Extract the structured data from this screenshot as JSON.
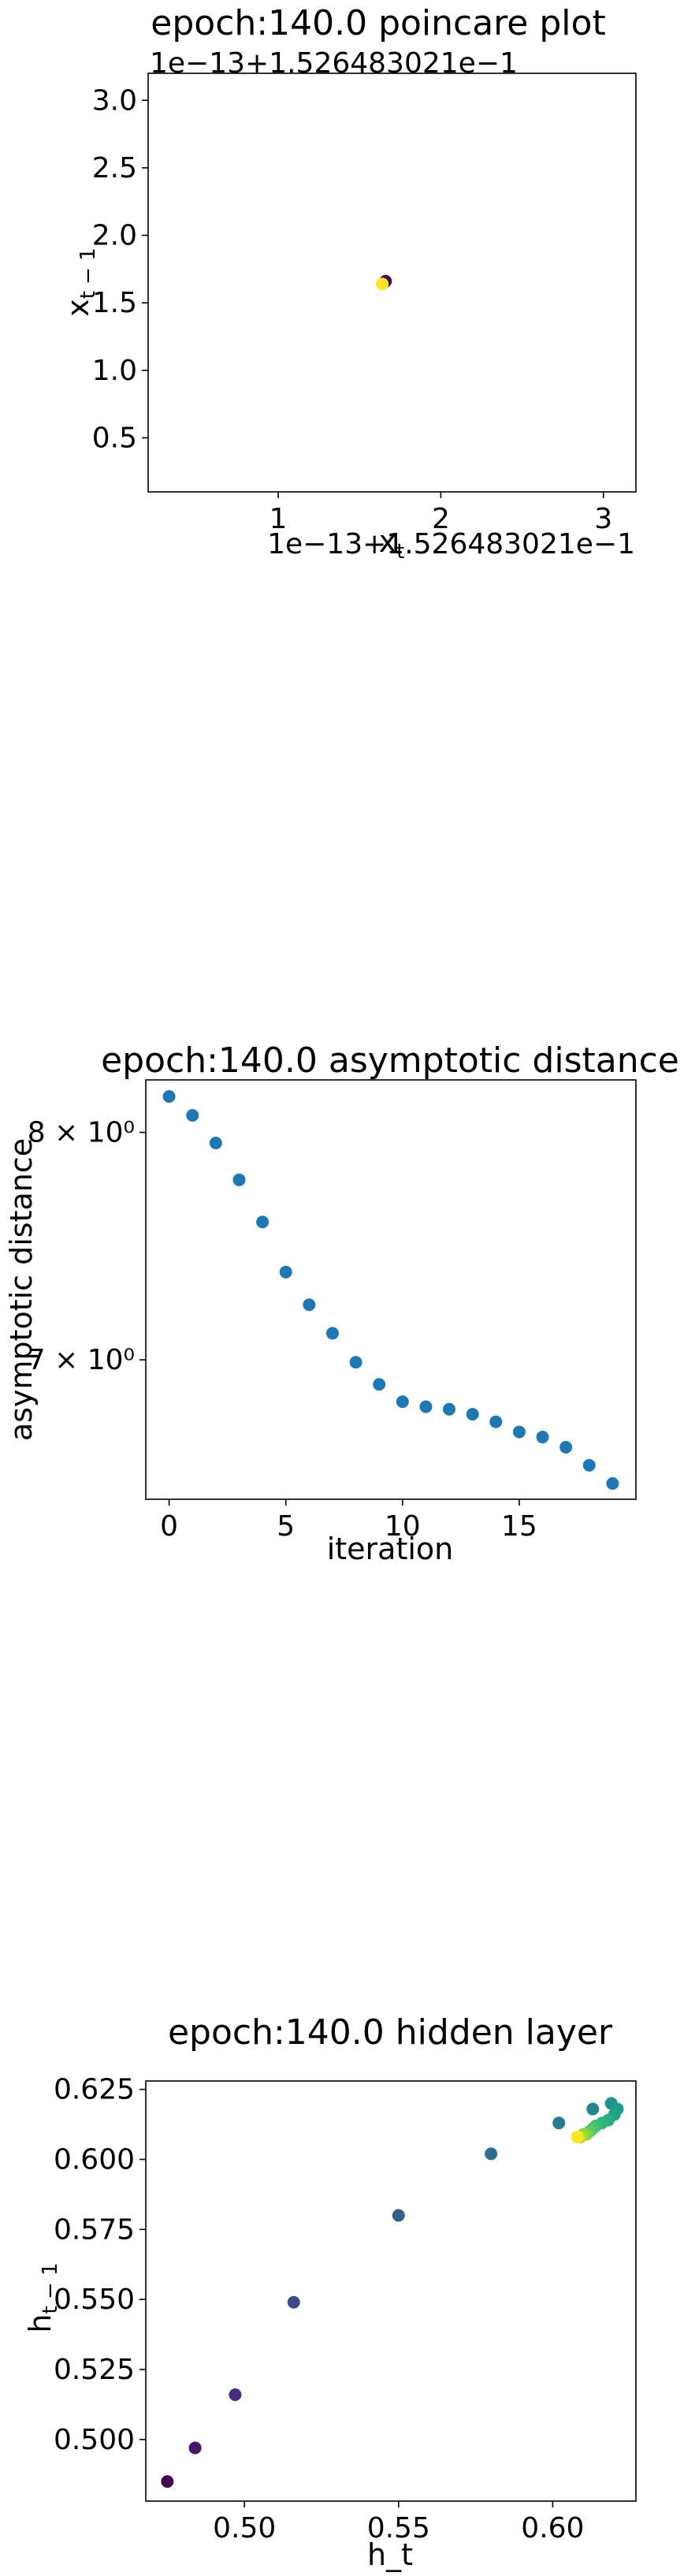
{
  "chart_data": [
    {
      "type": "scatter",
      "title": "epoch:140.0 poincare plot",
      "xlabel": "x_t",
      "ylabel": "x_{t-1}",
      "x_offset_label": "1e−13+1.526483021e−1",
      "y_offset_label": "1e−13+1.526483021e−1",
      "xlim": [
        0.2,
        3.2
      ],
      "ylim": [
        0.1,
        3.2
      ],
      "xticks": [
        1,
        2,
        3
      ],
      "yticks": [
        0.5,
        1.0,
        1.5,
        2.0,
        2.5,
        3.0
      ],
      "xtick_labels": [
        "1",
        "2",
        "3"
      ],
      "ytick_labels": [
        "0.5",
        "1.0",
        "1.5",
        "2.0",
        "2.5",
        "3.0"
      ],
      "colormap": "viridis",
      "points": [
        {
          "x": 1.66,
          "y": 1.66,
          "color": "#440154"
        },
        {
          "x": 1.64,
          "y": 1.64,
          "color": "#fde725"
        }
      ]
    },
    {
      "type": "scatter",
      "title": "epoch:140.0 asymptotic distance",
      "xlabel": "iteration",
      "ylabel": "asymptotic distance",
      "yscale": "log",
      "xlim": [
        -1,
        20
      ],
      "ylim": [
        6.45,
        8.25
      ],
      "xticks": [
        0,
        5,
        10,
        15
      ],
      "xtick_labels": [
        "0",
        "5",
        "10",
        "15"
      ],
      "yticks": [
        8,
        7
      ],
      "ytick_labels": [
        "8 × 10⁰",
        "7 × 10⁰"
      ],
      "color": "#1f77b4",
      "x": [
        0,
        1,
        2,
        3,
        4,
        5,
        6,
        7,
        8,
        9,
        10,
        11,
        12,
        13,
        14,
        15,
        16,
        17,
        18,
        19
      ],
      "y": [
        8.17,
        8.08,
        7.95,
        7.78,
        7.59,
        7.37,
        7.23,
        7.11,
        6.99,
        6.9,
        6.83,
        6.81,
        6.8,
        6.78,
        6.75,
        6.71,
        6.69,
        6.65,
        6.58,
        6.51
      ]
    },
    {
      "type": "scatter",
      "title": "epoch:140.0 hidden layer",
      "xlabel": "h_t",
      "ylabel": "h_{t-1}",
      "xlim": [
        0.468,
        0.627
      ],
      "ylim": [
        0.478,
        0.628
      ],
      "xticks": [
        0.5,
        0.55,
        0.6
      ],
      "xtick_labels": [
        "0.50",
        "0.55",
        "0.60"
      ],
      "yticks": [
        0.5,
        0.525,
        0.55,
        0.575,
        0.6,
        0.625
      ],
      "ytick_labels": [
        "0.500",
        "0.525",
        "0.550",
        "0.575",
        "0.600",
        "0.625"
      ],
      "colormap": "viridis",
      "points": [
        {
          "x": 0.475,
          "y": 0.485,
          "color": "#440154"
        },
        {
          "x": 0.484,
          "y": 0.497,
          "color": "#481467"
        },
        {
          "x": 0.497,
          "y": 0.516,
          "color": "#472d7b"
        },
        {
          "x": 0.516,
          "y": 0.549,
          "color": "#3e4989"
        },
        {
          "x": 0.55,
          "y": 0.58,
          "color": "#35608d"
        },
        {
          "x": 0.58,
          "y": 0.602,
          "color": "#2e6f8e"
        },
        {
          "x": 0.602,
          "y": 0.613,
          "color": "#297b8e"
        },
        {
          "x": 0.613,
          "y": 0.618,
          "color": "#24868e"
        },
        {
          "x": 0.619,
          "y": 0.62,
          "color": "#21918c"
        },
        {
          "x": 0.621,
          "y": 0.618,
          "color": "#1f9e89"
        },
        {
          "x": 0.62,
          "y": 0.616,
          "color": "#20a486"
        },
        {
          "x": 0.618,
          "y": 0.614,
          "color": "#26ad81"
        },
        {
          "x": 0.616,
          "y": 0.613,
          "color": "#31b57b"
        },
        {
          "x": 0.614,
          "y": 0.612,
          "color": "#3dbc74"
        },
        {
          "x": 0.613,
          "y": 0.611,
          "color": "#4ac16d"
        },
        {
          "x": 0.612,
          "y": 0.61,
          "color": "#5ec962"
        },
        {
          "x": 0.611,
          "y": 0.609,
          "color": "#75d054"
        },
        {
          "x": 0.61,
          "y": 0.609,
          "color": "#8fd744"
        },
        {
          "x": 0.609,
          "y": 0.608,
          "color": "#b5de2b"
        },
        {
          "x": 0.608,
          "y": 0.608,
          "color": "#fde725"
        }
      ]
    }
  ]
}
